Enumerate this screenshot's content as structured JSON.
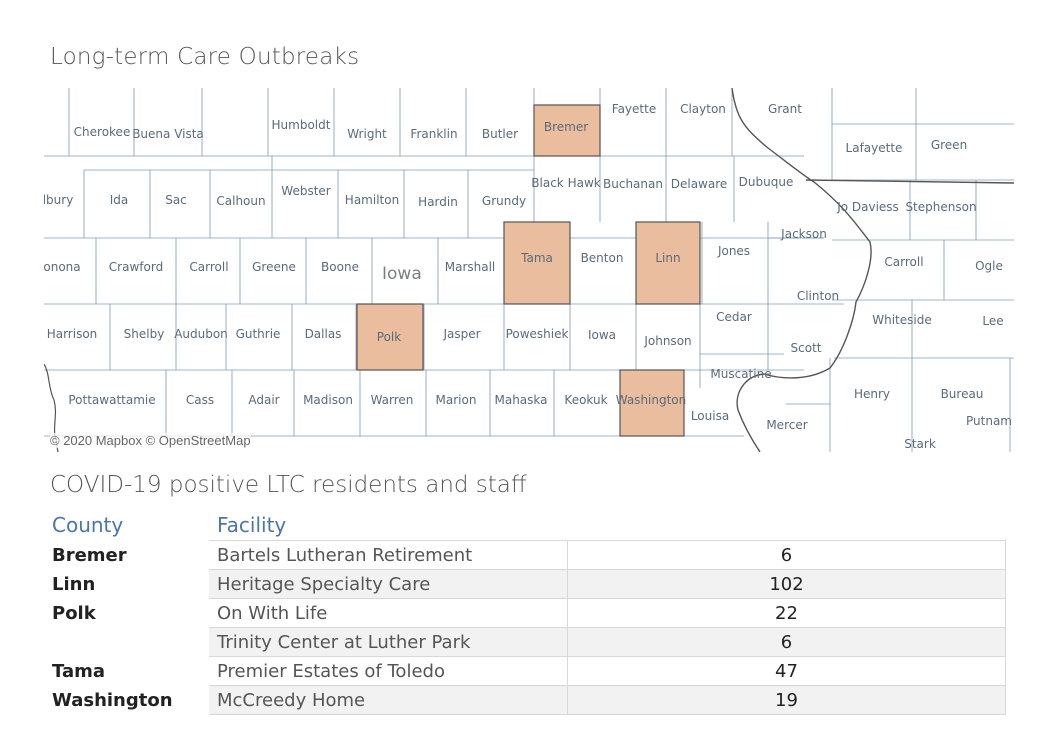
{
  "map_title": "Long-term Care Outbreaks",
  "table_title": "COVID-19 positive LTC residents and staff",
  "attribution": "© 2020 Mapbox  © OpenStreetMap",
  "state_label": "Iowa",
  "colors": {
    "highlight": "#ebbd9f",
    "border": "#7c9bb7",
    "state_border": "#555555"
  },
  "highlighted_counties": [
    "Bremer",
    "Tama",
    "Linn",
    "Polk",
    "Washington"
  ],
  "county_labels": [
    "Cherokee",
    "Buena Vista",
    "Humboldt",
    "Wright",
    "Franklin",
    "Butler",
    "Bremer",
    "Fayette",
    "Clayton",
    "Grant",
    "Lafayette",
    "Green",
    "Ida",
    "Sac",
    "Calhoun",
    "Webster",
    "Hamilton",
    "Hardin",
    "Grundy",
    "Black Hawk",
    "Buchanan",
    "Delaware",
    "Dubuque",
    "Jo Daviess",
    "Stephenson",
    "Crawford",
    "Carroll",
    "Greene",
    "Boone",
    "Marshall",
    "Tama",
    "Benton",
    "Linn",
    "Jones",
    "Jackson",
    "Carroll",
    "Ogle",
    "Harrison",
    "Shelby",
    "Audubon",
    "Guthrie",
    "Dallas",
    "Polk",
    "Jasper",
    "Poweshiek",
    "Iowa",
    "Johnson",
    "Cedar",
    "Clinton",
    "Whiteside",
    "Lee",
    "Scott",
    "Pottawattamie",
    "Cass",
    "Adair",
    "Madison",
    "Warren",
    "Marion",
    "Mahaska",
    "Keokuk",
    "Washington",
    "Louisa",
    "Muscatine",
    "Henry",
    "Bureau",
    "Mercer",
    "Putnam",
    "Stark",
    "lbury",
    "onona"
  ],
  "table": {
    "headers": {
      "county": "County",
      "facility": "Facility"
    },
    "rows": [
      {
        "county": "Bremer",
        "facility": "Bartels Lutheran Retirement",
        "count": "6"
      },
      {
        "county": "Linn",
        "facility": "Heritage Specialty Care",
        "count": "102"
      },
      {
        "county": "Polk",
        "facility": "On With Life",
        "count": "22"
      },
      {
        "county": "",
        "facility": "Trinity Center at Luther Park",
        "count": "6"
      },
      {
        "county": "Tama",
        "facility": "Premier Estates of Toledo",
        "count": "47"
      },
      {
        "county": "Washington",
        "facility": "McCreedy Home",
        "count": "19"
      }
    ]
  }
}
